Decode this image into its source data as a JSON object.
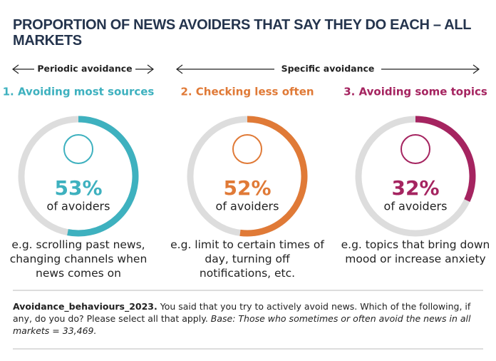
{
  "chart_data": {
    "type": "donut",
    "title": "PROPORTION OF NEWS AVOIDERS THAT SAY THEY DO EACH – ALL MARKETS",
    "groups": [
      "Periodic avoidance",
      "Specific avoidance"
    ],
    "categories": [
      "1. Avoiding most sources",
      "2. Checking less often",
      "3. Avoiding some topics"
    ],
    "values": [
      53,
      52,
      32
    ],
    "value_labels": [
      "53%",
      "52%",
      "32%"
    ],
    "value_caption": "of avoiders",
    "colors": [
      "#3eb1bf",
      "#e07a37",
      "#a52460"
    ],
    "track_color": "#dddddd",
    "ylim": [
      0,
      100
    ],
    "examples": [
      "e.g. scrolling past news, changing channels when news comes on",
      "e.g. limit to certain times of day, turning off notifications, etc.",
      "e.g. topics that bring down mood or increase anxiety"
    ],
    "note_code": "Avoidance_behaviours_2023.",
    "note_question": "You said that you try to actively avoid news. Which of the following, if any, do you do? Please select all that apply.",
    "note_base": "Base: Those who sometimes or often avoid the news in all markets = 33,469."
  }
}
